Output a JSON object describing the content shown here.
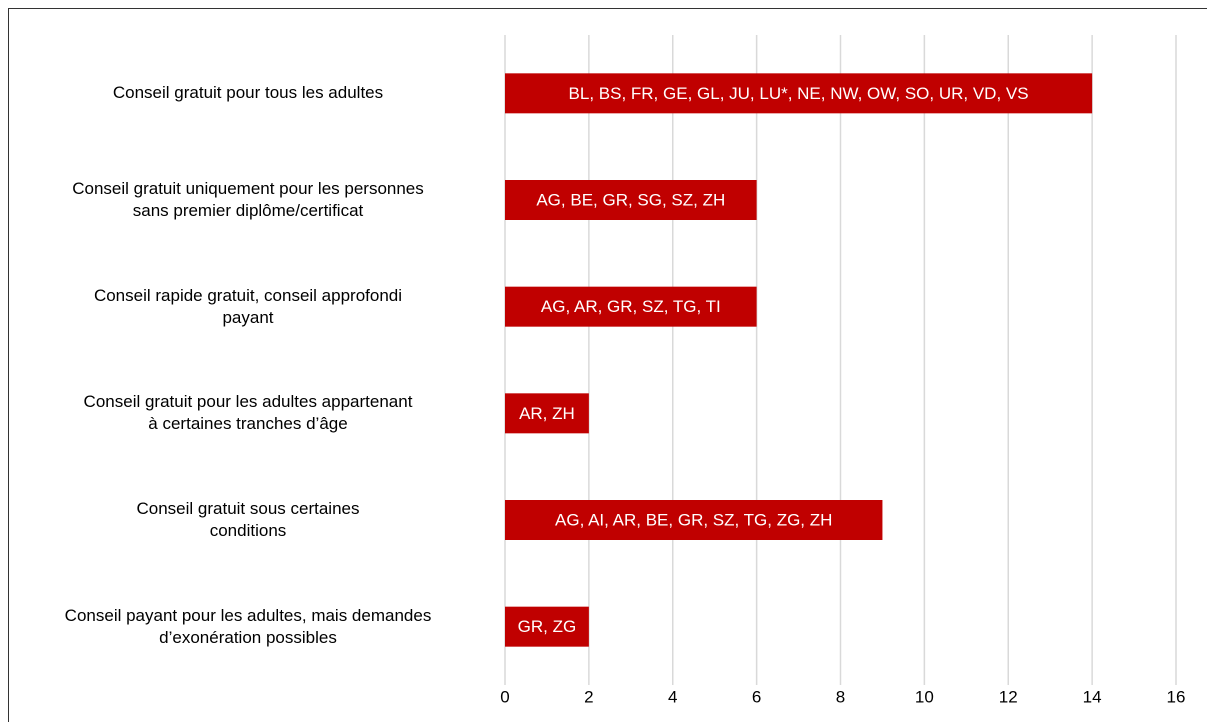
{
  "chart_data": {
    "type": "bar",
    "orientation": "horizontal",
    "categories": [
      "Conseil gratuit pour tous les adultes",
      "Conseil gratuit uniquement pour les personnes\nsans premier diplôme/certificat",
      "Conseil rapide gratuit, conseil approfondi\npayant",
      "Conseil gratuit pour les adultes appartenant\nà certaines tranches d’âge",
      "Conseil gratuit sous certaines\nconditions",
      "Conseil payant pour les adultes, mais demandes\nd’exonération possibles"
    ],
    "values": [
      14,
      6,
      6,
      2,
      9,
      2
    ],
    "bar_labels": [
      "BL, BS, FR, GE, GL, JU, LU*, NE, NW, OW, SO, UR, VD, VS",
      "AG, BE, GR, SG, SZ, ZH",
      "AG, AR, GR, SZ, TG, TI",
      "AR, ZH",
      "AG, AI, AR, BE, GR, SZ, TG, ZG, ZH",
      "GR, ZG"
    ],
    "color": "#c00000",
    "xlim": [
      0,
      16
    ],
    "xticks": [
      0,
      2,
      4,
      6,
      8,
      10,
      12,
      14,
      16
    ],
    "grid": true
  }
}
